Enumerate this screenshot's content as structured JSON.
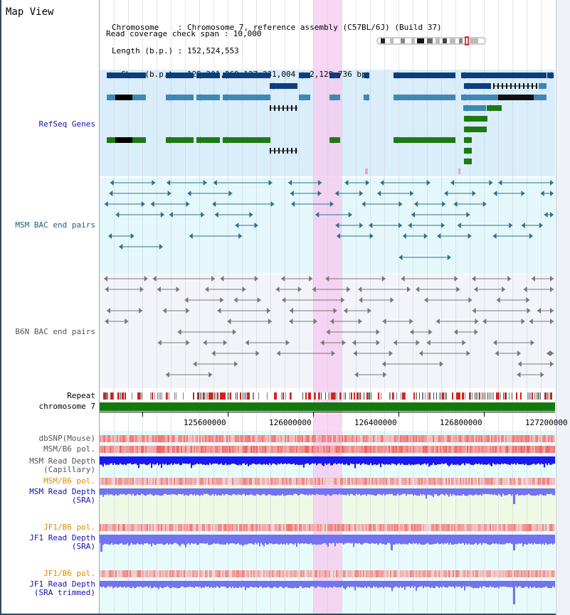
{
  "header": {
    "title": "Map View",
    "info_lines": [
      "Chromosome    : Chromosome 7, reference assembly (C57BL/6J) (Build 37)",
      "Length (b.p.) : 152,524,553",
      "  Show (b.p.) : 125,201,269-127,331,004 : 2,129,736 bp",
      "Read coverage check span : 10,000"
    ]
  },
  "tracks": {
    "refseq": "RefSeq Genes",
    "msm_bac": "MSM BAC end pairs",
    "b6n_bac": "B6N BAC end pairs",
    "repeat": "Repeat",
    "chromosome": "chromosome 7",
    "dbsnp": "dbSNP(Mouse)",
    "msm_pol": "MSM/B6 pol.",
    "msm_depth_cap_1": "MSM Read Depth",
    "msm_depth_cap_2": "(Capillary)",
    "msm_pol2": "MSM/B6 pol.",
    "msm_depth_sra_1": "MSM Read Depth",
    "msm_depth_sra_2": "(SRA)",
    "jf1_pol": "JF1/B6 pol.",
    "jf1_depth_sra_1": "JF1 Read Depth",
    "jf1_depth_sra_2": "(SRA)",
    "jf1_pol2": "JF1/B6 pol.",
    "jf1_depth_trim_1": "JF1 Read Depth",
    "jf1_depth_trim_2": "(SRA trimmed)"
  },
  "ruler": {
    "ticks": [
      "125600000",
      "126000000",
      "126400000",
      "126800000",
      "127200000"
    ]
  },
  "colors": {
    "refseq_bg": "#d9eefa",
    "msm_bg": "#e4f8fb",
    "b6n_bg": "#f3f4fa",
    "gene_dark": "#0d3d7d",
    "gene_mid": "#3f88b4",
    "gene_green": "#1c7a14",
    "bac_msm": "#2d6f8c",
    "bac_b6n": "#777777",
    "chromosome": "#13780f",
    "highlight": "#f7c8ef",
    "depth_blue": "#1a1aee",
    "depth_light": "#7373f0",
    "pol_red": "#f06a6a",
    "label_blue": "#1010b0",
    "label_orange": "#e08a00",
    "label_teal": "#1c5f7a",
    "label_grey": "#555555"
  }
}
